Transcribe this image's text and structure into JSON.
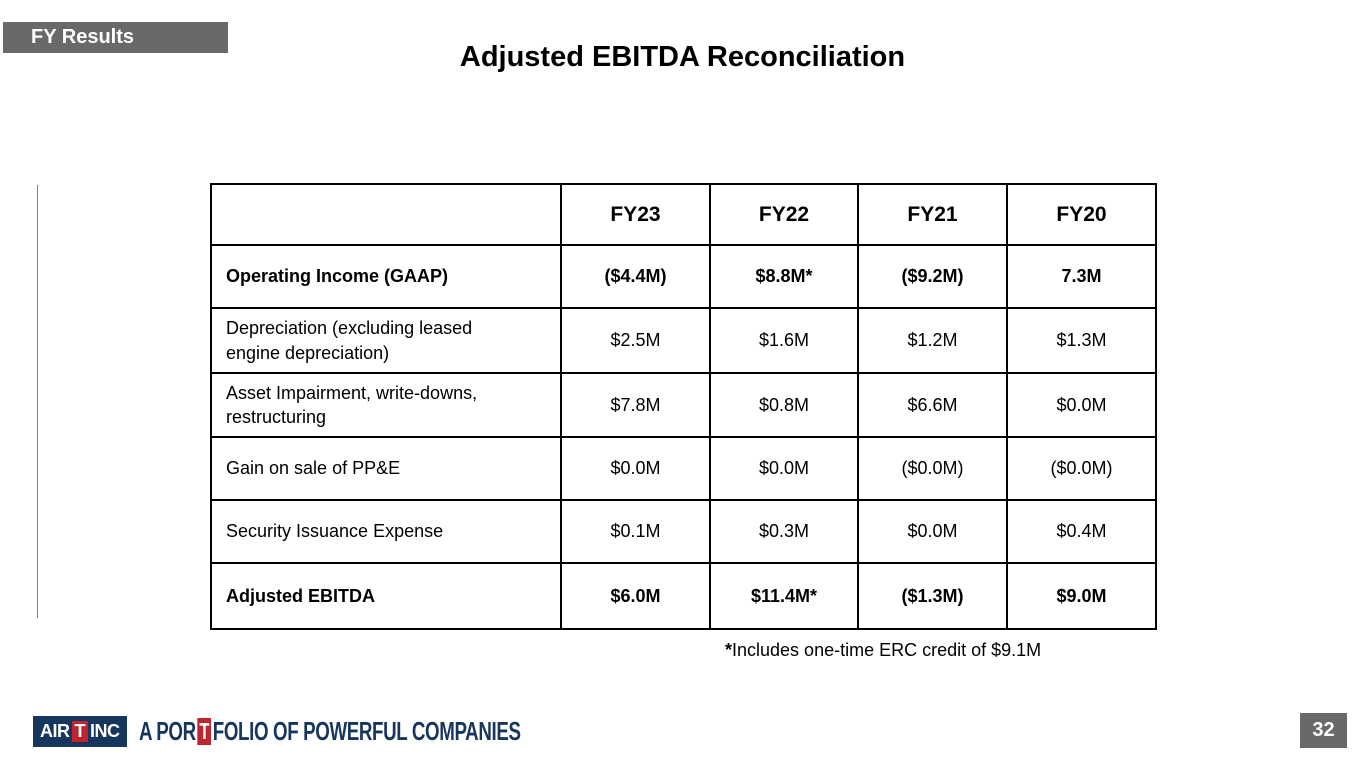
{
  "tag_label": "FY Results",
  "title": "Adjusted EBITDA Reconciliation",
  "table": {
    "columns": [
      "",
      "FY23",
      "FY22",
      "FY21",
      "FY20"
    ],
    "rows": [
      {
        "label": "Operating Income (GAAP)",
        "bold": true,
        "values": [
          "($4.4M)",
          "$8.8M*",
          "($9.2M)",
          "7.3M"
        ]
      },
      {
        "label": "Depreciation (excluding leased\nengine depreciation)",
        "bold": false,
        "values": [
          "$2.5M",
          "$1.6M",
          "$1.2M",
          "$1.3M"
        ]
      },
      {
        "label": "Asset Impairment, write-downs,\nrestructuring",
        "bold": false,
        "values": [
          "$7.8M",
          "$0.8M",
          "$6.6M",
          "$0.0M"
        ]
      },
      {
        "label": "Gain on sale of PP&E",
        "bold": false,
        "values": [
          "$0.0M",
          "$0.0M",
          "($0.0M)",
          "($0.0M)"
        ]
      },
      {
        "label": "Security Issuance Expense",
        "bold": false,
        "values": [
          "$0.1M",
          "$0.3M",
          "$0.0M",
          "$0.4M"
        ]
      },
      {
        "label": "Adjusted EBITDA",
        "bold": true,
        "values": [
          "$6.0M",
          "$11.4M*",
          "($1.3M)",
          "$9.0M"
        ]
      }
    ]
  },
  "footnote": {
    "marker": "*",
    "text": "Includes one-time ERC credit of $9.1M"
  },
  "footer": {
    "logo": {
      "part1": "AIR",
      "t1": "T",
      "part2": "INC",
      "tagline_pre": "A POR",
      "tagline_t": "T",
      "tagline_post": "FOLIO OF POWERFUL COMPANIES"
    },
    "page_number": "32"
  },
  "colors": {
    "tag_gray": "#696969",
    "logo_navy": "#17365d",
    "logo_red": "#c0252f",
    "table_border": "#000000",
    "accent_line_gray": "#808080"
  }
}
